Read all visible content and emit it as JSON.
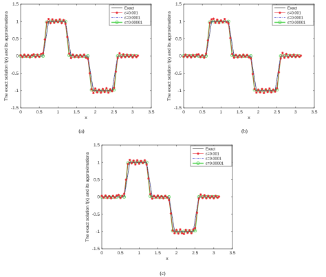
{
  "colors": {
    "exact": "#333333",
    "eps1": "#e8212a",
    "eps2": "#6a6ad8",
    "eps3": "#4ad04a",
    "axis": "#262626"
  },
  "chart_data": [
    {
      "type": "line",
      "caption": "(a)",
      "xlabel": "x",
      "ylabel": "The exact solution f(x) and its approximations",
      "xlim": [
        0,
        3.5
      ],
      "ylim": [
        -1.5,
        1.5
      ],
      "xticks": [
        "0",
        "0.5",
        "1",
        "1.5",
        "2",
        "2.5",
        "3",
        "3.5"
      ],
      "yticks": [
        "-1.5",
        "-1",
        "-0.5",
        "0",
        "0.5",
        "1",
        "1.5"
      ],
      "legend_position": "top-right",
      "grid": false,
      "series": [
        {
          "name": "Exact",
          "x": [
            0,
            0.6,
            0.75,
            1.2,
            1.35,
            1.8,
            1.95,
            2.45,
            2.6,
            3.14
          ],
          "y": [
            0,
            0,
            1,
            1,
            0,
            0,
            -1,
            -1,
            0,
            0
          ]
        },
        {
          "name": "ε=0.001",
          "x": [
            0.0,
            0.05,
            0.1,
            0.15,
            0.2,
            0.25,
            0.3,
            0.35,
            0.4,
            0.45,
            0.5,
            0.55,
            0.6,
            0.65,
            0.7,
            0.75,
            0.8,
            0.85,
            0.9,
            0.95,
            1.0,
            1.05,
            1.1,
            1.15,
            1.2,
            1.25,
            1.3,
            1.35,
            1.4,
            1.45,
            1.5,
            1.55,
            1.6,
            1.65,
            1.7,
            1.75,
            1.8,
            1.85,
            1.9,
            1.95,
            2.0,
            2.05,
            2.1,
            2.15,
            2.2,
            2.25,
            2.3,
            2.35,
            2.4,
            2.45,
            2.5,
            2.55,
            2.6,
            2.65,
            2.7,
            2.75,
            2.8,
            2.85,
            2.9,
            2.95,
            3.0,
            3.05,
            3.1,
            3.14
          ],
          "y": [
            0.02,
            -0.03,
            0.04,
            -0.02,
            0.03,
            -0.04,
            0.02,
            0.05,
            -0.03,
            0.04,
            -0.02,
            0.06,
            0.08,
            0.48,
            0.97,
            1.07,
            0.95,
            1.06,
            0.96,
            1.04,
            0.98,
            1.06,
            0.95,
            1.04,
            0.93,
            0.55,
            0.07,
            -0.06,
            0.04,
            -0.03,
            0.02,
            -0.04,
            0.03,
            -0.02,
            0.04,
            -0.05,
            -0.08,
            -0.5,
            -0.96,
            -1.07,
            -0.94,
            -1.05,
            -0.97,
            -1.06,
            -0.95,
            -1.04,
            -0.93,
            -1.06,
            -0.96,
            -1.02,
            -0.92,
            -0.45,
            -0.06,
            0.08,
            -0.04,
            0.05,
            -0.03,
            0.04,
            -0.02,
            0.03,
            -0.04,
            0.02,
            -0.03,
            0.01
          ]
        },
        {
          "name": "ε=0.0001",
          "x": [
            0,
            0.6,
            0.75,
            1.2,
            1.35,
            1.8,
            1.95,
            2.45,
            2.6,
            3.14
          ],
          "y": [
            0,
            0,
            1,
            1,
            0,
            0,
            -1,
            -1,
            0,
            0
          ]
        },
        {
          "name": "ε=0.00001",
          "x": [
            0.0,
            0.1,
            0.2,
            0.3,
            0.4,
            0.5,
            0.6,
            0.7,
            0.8,
            0.9,
            1.0,
            1.1,
            1.2,
            1.3,
            1.4,
            1.5,
            1.6,
            1.7,
            1.8,
            1.9,
            2.0,
            2.1,
            2.2,
            2.3,
            2.4,
            2.5,
            2.6,
            2.7,
            2.8,
            2.9,
            3.0,
            3.1
          ],
          "y": [
            0,
            0,
            0,
            0,
            0,
            0,
            0,
            0.98,
            1,
            1,
            1,
            1,
            1,
            0.02,
            0,
            0,
            0,
            0,
            0,
            -0.98,
            -1,
            -1,
            -1,
            -1,
            -1,
            -0.98,
            0,
            0,
            0,
            0,
            0,
            0
          ]
        }
      ]
    },
    {
      "type": "line",
      "caption": "(b)",
      "xlabel": "x",
      "ylabel": "The exact solution f(x) and its approximations",
      "xlim": [
        0,
        3.5
      ],
      "ylim": [
        -1.5,
        1.5
      ],
      "xticks": [
        "0",
        "0.5",
        "1",
        "1.5",
        "2",
        "2.5",
        "3",
        "3.5"
      ],
      "yticks": [
        "-1.5",
        "-1",
        "-0.5",
        "0",
        "0.5",
        "1",
        "1.5"
      ],
      "legend_position": "top-right",
      "grid": false,
      "series": [
        {
          "name": "Exact",
          "x": [
            0,
            0.6,
            0.75,
            1.2,
            1.35,
            1.8,
            1.95,
            2.45,
            2.6,
            3.14
          ],
          "y": [
            0,
            0,
            1,
            1,
            0,
            0,
            -1,
            -1,
            0,
            0
          ]
        },
        {
          "name": "ε=0.001",
          "x": [
            0.0,
            0.05,
            0.1,
            0.15,
            0.2,
            0.25,
            0.3,
            0.35,
            0.4,
            0.45,
            0.5,
            0.55,
            0.6,
            0.65,
            0.7,
            0.75,
            0.8,
            0.85,
            0.9,
            0.95,
            1.0,
            1.05,
            1.1,
            1.15,
            1.2,
            1.25,
            1.3,
            1.35,
            1.4,
            1.45,
            1.5,
            1.55,
            1.6,
            1.65,
            1.7,
            1.75,
            1.8,
            1.85,
            1.9,
            1.95,
            2.0,
            2.05,
            2.1,
            2.15,
            2.2,
            2.25,
            2.3,
            2.35,
            2.4,
            2.45,
            2.5,
            2.55,
            2.6,
            2.65,
            2.7,
            2.75,
            2.8,
            2.85,
            2.9,
            2.95,
            3.0,
            3.05,
            3.1,
            3.14
          ],
          "y": [
            -0.02,
            0.04,
            -0.03,
            0.02,
            -0.04,
            0.03,
            -0.02,
            0.04,
            0.05,
            -0.03,
            0.02,
            -0.05,
            0.07,
            0.45,
            0.96,
            1.06,
            1.08,
            0.96,
            1.05,
            0.95,
            1.03,
            0.97,
            1.07,
            0.98,
            0.94,
            0.52,
            0.06,
            -0.05,
            0.03,
            -0.04,
            0.02,
            -0.03,
            0.04,
            -0.02,
            0.03,
            -0.04,
            -0.07,
            -0.52,
            -0.95,
            -1.06,
            -0.97,
            -1.05,
            -0.95,
            -1.07,
            -0.96,
            -1.04,
            -0.94,
            -1.05,
            -0.97,
            -1.03,
            -0.93,
            -0.47,
            -0.07,
            0.09,
            -0.05,
            0.06,
            -0.04,
            0.03,
            -0.02,
            0.04,
            -0.03,
            0.02,
            -0.02,
            0.01
          ]
        },
        {
          "name": "ε=0.0001",
          "x": [
            0,
            0.6,
            0.75,
            1.2,
            1.35,
            1.8,
            1.95,
            2.45,
            2.6,
            3.14
          ],
          "y": [
            0,
            0,
            1,
            1,
            0,
            0,
            -1,
            -1,
            0,
            0
          ]
        },
        {
          "name": "ε=0.00001",
          "x": [
            0.0,
            0.1,
            0.2,
            0.3,
            0.4,
            0.5,
            0.6,
            0.7,
            0.8,
            0.9,
            1.0,
            1.1,
            1.2,
            1.3,
            1.4,
            1.5,
            1.6,
            1.7,
            1.8,
            1.9,
            2.0,
            2.1,
            2.2,
            2.3,
            2.4,
            2.5,
            2.6,
            2.7,
            2.8,
            2.9,
            3.0,
            3.1
          ],
          "y": [
            0,
            0,
            0,
            0,
            0,
            0,
            0,
            0.98,
            1,
            1,
            1,
            1,
            1,
            0.02,
            0,
            0,
            0,
            0,
            0,
            -0.98,
            -1,
            -1,
            -1,
            -1,
            -1,
            -0.98,
            0,
            0,
            0,
            0,
            0,
            0
          ]
        }
      ]
    },
    {
      "type": "line",
      "caption": "(c)",
      "xlabel": "x",
      "ylabel": "The exact solution f(x) and its approximations",
      "xlim": [
        0,
        3.5
      ],
      "ylim": [
        -1.5,
        1.5
      ],
      "xticks": [
        "0",
        "0.5",
        "1",
        "1.5",
        "2",
        "2.5",
        "3",
        "3.5"
      ],
      "yticks": [
        "-1.5",
        "-1",
        "-0.5",
        "0",
        "0.5",
        "1",
        "1.5"
      ],
      "legend_position": "top-right",
      "grid": false,
      "series": [
        {
          "name": "Exact",
          "x": [
            0,
            0.6,
            0.75,
            1.2,
            1.35,
            1.8,
            1.95,
            2.45,
            2.6,
            3.14
          ],
          "y": [
            0,
            0,
            1,
            1,
            0,
            0,
            -1,
            -1,
            0,
            0
          ]
        },
        {
          "name": "ε=0.001",
          "x": [
            0.0,
            0.05,
            0.1,
            0.15,
            0.2,
            0.25,
            0.3,
            0.35,
            0.4,
            0.45,
            0.5,
            0.55,
            0.6,
            0.65,
            0.7,
            0.75,
            0.8,
            0.85,
            0.9,
            0.95,
            1.0,
            1.05,
            1.1,
            1.15,
            1.2,
            1.25,
            1.3,
            1.35,
            1.4,
            1.45,
            1.5,
            1.55,
            1.6,
            1.65,
            1.7,
            1.75,
            1.8,
            1.85,
            1.9,
            1.95,
            2.0,
            2.05,
            2.1,
            2.15,
            2.2,
            2.25,
            2.3,
            2.35,
            2.4,
            2.45,
            2.5,
            2.55,
            2.6,
            2.65,
            2.7,
            2.75,
            2.8,
            2.85,
            2.9,
            2.95,
            3.0,
            3.05,
            3.1,
            3.14
          ],
          "y": [
            0.03,
            -0.02,
            0.04,
            -0.03,
            0.02,
            -0.04,
            0.03,
            -0.02,
            0.04,
            0.06,
            -0.03,
            0.03,
            0.09,
            0.5,
            0.95,
            1.07,
            0.97,
            1.05,
            0.94,
            1.06,
            0.96,
            1.04,
            0.98,
            1.06,
            0.93,
            0.53,
            0.08,
            -0.05,
            0.03,
            -0.02,
            0.04,
            -0.03,
            0.02,
            -0.04,
            0.03,
            -0.02,
            -0.09,
            -0.48,
            -0.97,
            -1.05,
            -0.95,
            -1.06,
            -0.94,
            -1.05,
            -1.07,
            -0.95,
            -1.04,
            -0.96,
            -1.05,
            -0.94,
            -0.9,
            -0.46,
            -0.05,
            0.07,
            -0.03,
            0.05,
            -0.04,
            0.03,
            -0.03,
            0.02,
            -0.04,
            0.03,
            -0.02,
            0.01
          ]
        },
        {
          "name": "ε=0.0001",
          "x": [
            0,
            0.6,
            0.75,
            1.2,
            1.35,
            1.8,
            1.95,
            2.45,
            2.6,
            3.14
          ],
          "y": [
            0,
            0,
            1,
            1,
            0,
            0,
            -1,
            -1,
            0,
            0
          ]
        },
        {
          "name": "ε=0.00001",
          "x": [
            0.0,
            0.1,
            0.2,
            0.3,
            0.4,
            0.5,
            0.6,
            0.7,
            0.8,
            0.9,
            1.0,
            1.1,
            1.2,
            1.3,
            1.4,
            1.5,
            1.6,
            1.7,
            1.8,
            1.9,
            2.0,
            2.1,
            2.2,
            2.3,
            2.4,
            2.5,
            2.6,
            2.7,
            2.8,
            2.9,
            3.0,
            3.1
          ],
          "y": [
            0,
            0,
            0,
            0,
            0,
            0,
            0,
            0.98,
            1,
            1,
            1,
            1,
            1,
            0.02,
            0,
            0,
            0,
            0,
            0,
            -0.98,
            -1,
            -1,
            -1,
            -1,
            -1,
            -0.98,
            0,
            0,
            0,
            0,
            0,
            0
          ]
        }
      ]
    }
  ]
}
